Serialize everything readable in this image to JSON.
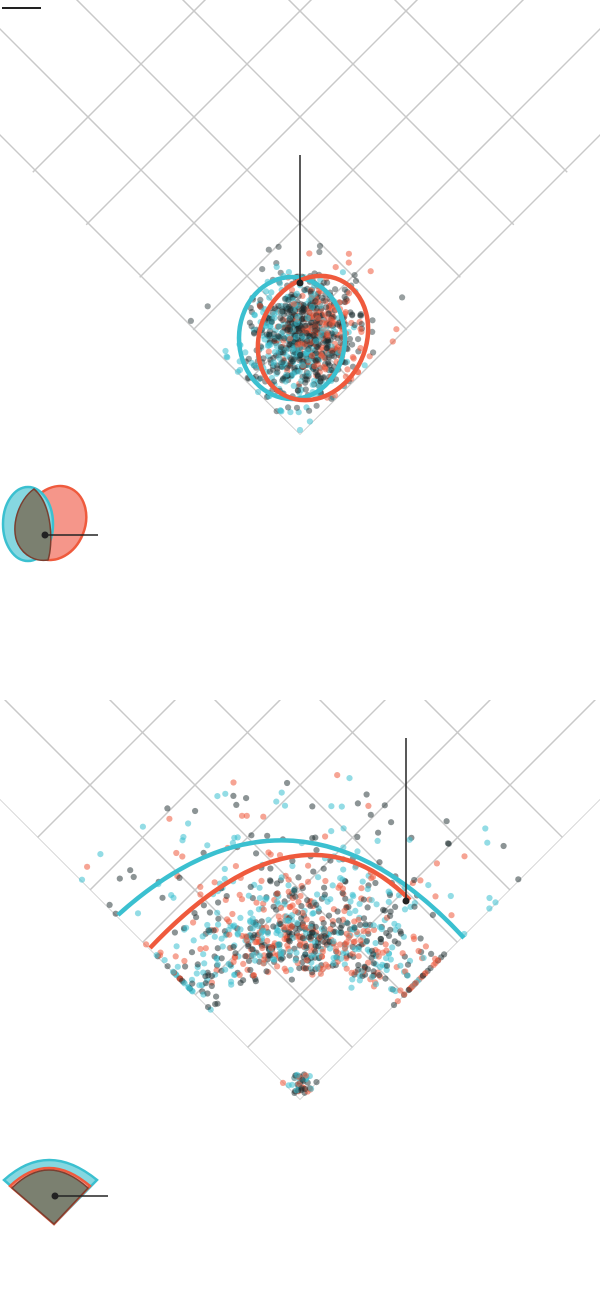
{
  "colors": {
    "series_a": "#3bc0d0",
    "series_b": "#ef5a3d",
    "overlap": "#7b8070",
    "grid": "#c9c9c9",
    "leader": "#222222"
  },
  "chart_data": [
    {
      "type": "scatter",
      "panel": "infield",
      "title": "",
      "series": [
        {
          "color": "#3bc0d0",
          "count": 520,
          "centroid_angle_deg": -4,
          "spread": "tight"
        },
        {
          "color": "#ef5a3d",
          "count": 420,
          "centroid_angle_deg": 7,
          "spread": "tight"
        }
      ],
      "zones": [
        {
          "series_color": "#3bc0d0",
          "shape": "ellipse",
          "rotation_deg": 0
        },
        {
          "series_color": "#ef5a3d",
          "shape": "ellipse",
          "rotation_deg": 25
        }
      ],
      "grid": true,
      "legend": "bottom-left"
    },
    {
      "type": "scatter",
      "panel": "outfield",
      "title": "",
      "series": [
        {
          "color": "#3bc0d0",
          "count": 520,
          "spread": "wide"
        },
        {
          "color": "#ef5a3d",
          "count": 420,
          "spread": "wide"
        }
      ],
      "zones": [
        {
          "series_color": "#3bc0d0",
          "shape": "arc"
        },
        {
          "series_color": "#ef5a3d",
          "shape": "arc"
        }
      ],
      "grid": true,
      "legend": "bottom-left"
    }
  ]
}
